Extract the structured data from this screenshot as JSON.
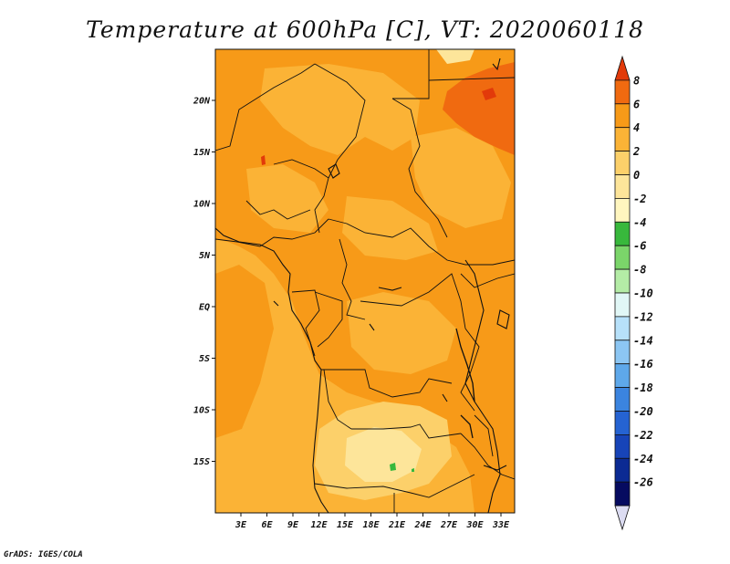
{
  "title": "Temperature at 600hPa [C], VT: 2020060118",
  "credit": "GrADS: IGES/COLA",
  "lat_labels": [
    "20N",
    "15N",
    "10N",
    "5N",
    "EQ",
    "5S",
    "10S",
    "15S"
  ],
  "lon_labels": [
    "3E",
    "6E",
    "9E",
    "12E",
    "15E",
    "18E",
    "21E",
    "24E",
    "27E",
    "30E",
    "33E"
  ],
  "colorbar": {
    "labels": [
      "8",
      "6",
      "4",
      "2",
      "0",
      "-2",
      "-4",
      "-6",
      "-8",
      "-10",
      "-12",
      "-14",
      "-16",
      "-18",
      "-20",
      "-22",
      "-24",
      "-26"
    ],
    "colors": [
      "#e23a0a",
      "#f06a10",
      "#f79a18",
      "#fbb336",
      "#fcd06a",
      "#fde59a",
      "#fff6bf",
      "#38b83c",
      "#7bd56a",
      "#b4eca6",
      "#e1f7f6",
      "#b7e1fa",
      "#8cc6f3",
      "#5ea8ea",
      "#3b84df",
      "#2563d2",
      "#1744b8",
      "#0b2a93",
      "#060b60",
      "#dcdcf2"
    ]
  },
  "styles": {
    "ocean_color": "#fbb336",
    "land_color": "#f79a18",
    "warm_color": "#f06a10",
    "hot_color": "#e23a0a",
    "cool_color": "#fcd06a",
    "cooler_color": "#fde59a",
    "green_color": "#38b83c",
    "border_color": "#111111"
  }
}
